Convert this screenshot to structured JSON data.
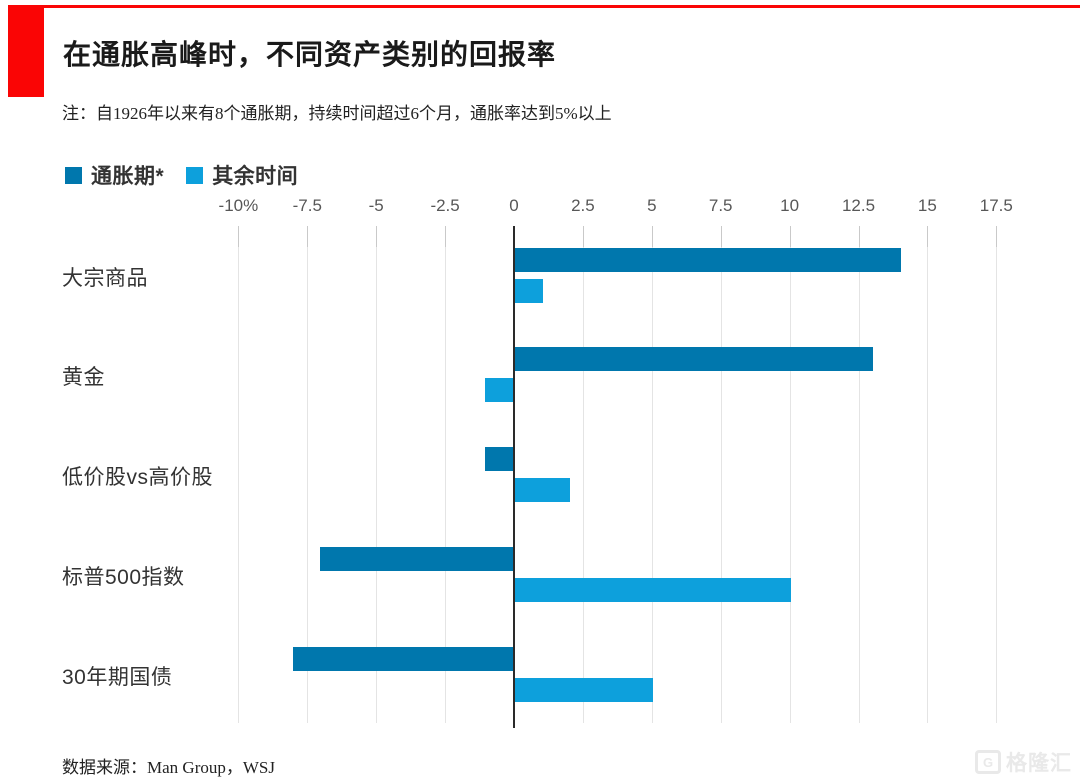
{
  "colors": {
    "accent_red": "#fa0505",
    "series_dark_blue": "#0077ad",
    "series_light_blue": "#0da0dc",
    "gridline": "#e4e4e4",
    "zero_line": "#2a2a2a",
    "axis_text": "#575757",
    "watermark": "#e9e9e9"
  },
  "header": {
    "title": "在通胀高峰时，不同资产类别的回报率",
    "note": "注：自1926年以来有8个通胀期，持续时间超过6个月，通胀率达到5%以上"
  },
  "legend": {
    "items": [
      {
        "label": "通胀期*",
        "color": "#0077ad"
      },
      {
        "label": "其余时间",
        "color": "#0da0dc"
      }
    ]
  },
  "chart_data": {
    "type": "bar",
    "orientation": "horizontal",
    "title": "在通胀高峰时，不同资产类别的回报率",
    "categories": [
      "大宗商品",
      "黄金",
      "低价股vs高价股",
      "标普500指数",
      "30年期国债"
    ],
    "series": [
      {
        "name": "通胀期*",
        "color": "#0077ad",
        "values": [
          14,
          13,
          -1,
          -7,
          -8
        ]
      },
      {
        "name": "其余时间",
        "color": "#0da0dc",
        "values": [
          1,
          -1,
          2,
          10,
          5
        ]
      }
    ],
    "x_tick_labels": [
      "-10%",
      "-7.5",
      "-5",
      "-2.5",
      "0",
      "2.5",
      "5",
      "7.5",
      "10",
      "12.5",
      "15",
      "17.5"
    ],
    "x_tick_values": [
      -10,
      -7.5,
      -5,
      -2.5,
      0,
      2.5,
      5,
      7.5,
      10,
      12.5,
      15,
      17.5
    ],
    "xlim": [
      -10,
      17.5
    ],
    "grid": true,
    "legend_position": "top-left",
    "unit_note": "values are percent returns"
  },
  "footer": {
    "source": "数据来源：Man Group，WSJ",
    "watermark_logo": "G",
    "watermark_text": "格隆汇"
  }
}
